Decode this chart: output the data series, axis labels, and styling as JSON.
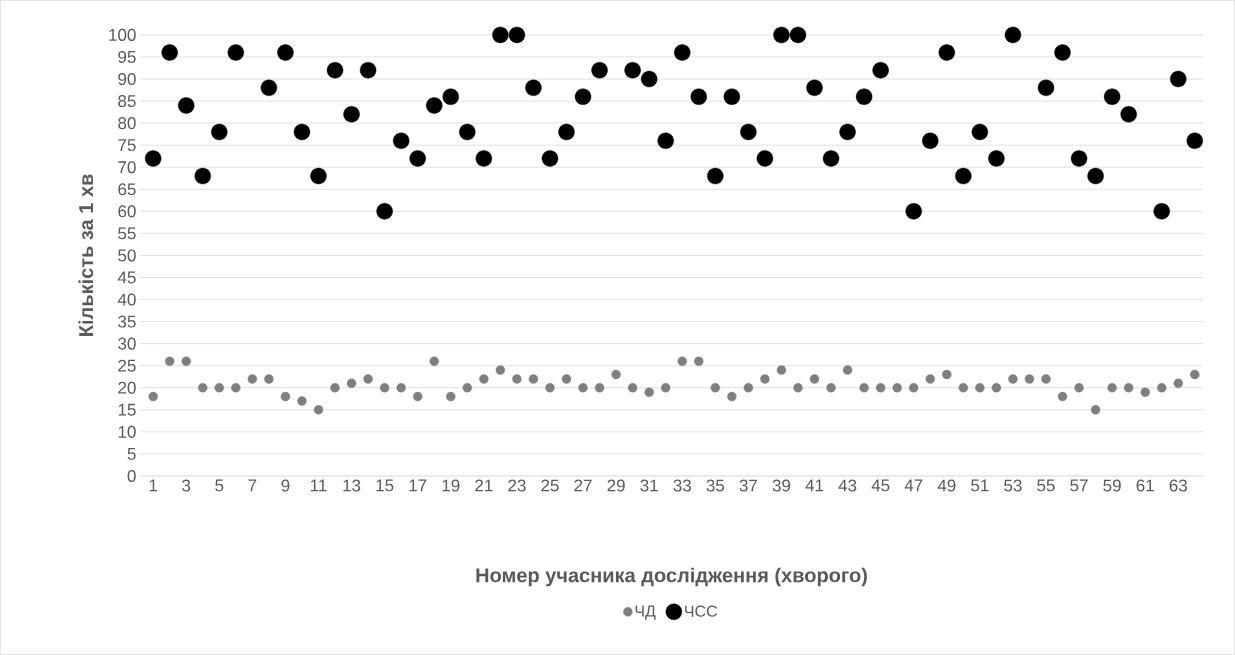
{
  "chart_data": {
    "type": "scatter",
    "xlabel": "Номер учасника дослідження (хворого)",
    "ylabel": "Кількість  за 1 хв",
    "categories": [
      "1",
      null,
      "3",
      null,
      "5",
      null,
      "7",
      null,
      "9",
      null,
      "11",
      null,
      "13",
      null,
      "15",
      null,
      "17",
      null,
      "19",
      null,
      "21",
      null,
      "23",
      null,
      "25",
      null,
      "27",
      null,
      "29",
      null,
      "31",
      null,
      "33",
      null,
      "35",
      null,
      "37",
      null,
      "39",
      null,
      "41",
      null,
      "43",
      null,
      "45",
      null,
      "47",
      null,
      "49",
      null,
      "51",
      null,
      "53",
      null,
      "55",
      null,
      "57",
      null,
      "59",
      null,
      "61",
      null,
      "63",
      null
    ],
    "series": [
      {
        "name": "ЧД",
        "color": "#7f7f7f",
        "values": [
          18,
          26,
          26,
          20,
          20,
          20,
          22,
          22,
          18,
          17,
          15,
          20,
          21,
          22,
          20,
          20,
          18,
          26,
          18,
          20,
          22,
          24,
          22,
          22,
          20,
          22,
          20,
          20,
          23,
          20,
          19,
          20,
          26,
          26,
          20,
          18,
          20,
          22,
          24,
          20,
          22,
          20,
          24,
          20,
          20,
          20,
          20,
          22,
          23,
          20,
          20,
          20,
          22,
          22,
          22,
          18,
          20,
          15,
          20,
          20,
          19,
          20,
          21,
          23
        ]
      },
      {
        "name": "ЧСС",
        "color": "#000000",
        "values": [
          72,
          96,
          84,
          68,
          78,
          96,
          null,
          88,
          96,
          78,
          68,
          92,
          82,
          92,
          60,
          76,
          72,
          84,
          86,
          78,
          72,
          100,
          100,
          88,
          72,
          78,
          86,
          92,
          null,
          92,
          90,
          76,
          96,
          86,
          68,
          86,
          78,
          72,
          100,
          100,
          88,
          72,
          78,
          86,
          92,
          null,
          60,
          76,
          96,
          68,
          78,
          72,
          100,
          null,
          88,
          96,
          72,
          68,
          86,
          82,
          null,
          60,
          90,
          76
        ]
      }
    ],
    "ylim": [
      0,
      100
    ],
    "yticks": [
      0,
      5,
      10,
      15,
      20,
      25,
      30,
      35,
      40,
      45,
      50,
      55,
      60,
      65,
      70,
      75,
      80,
      85,
      90,
      95,
      100
    ],
    "grid": "y",
    "legend": "bottom",
    "marker": "circle"
  }
}
